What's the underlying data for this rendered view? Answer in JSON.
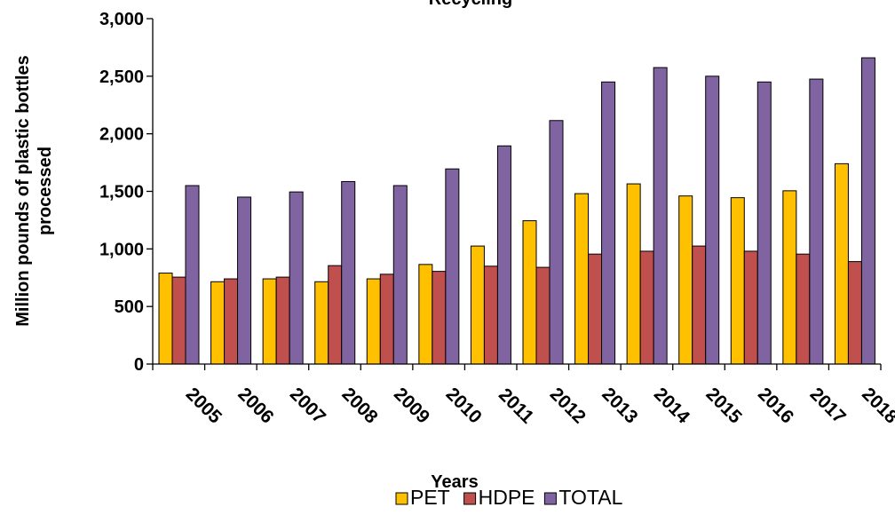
{
  "chart_data": {
    "type": "bar",
    "title": "Recycling",
    "xlabel": "Years",
    "ylabel_line1": "Million pounds of plastic bottles",
    "ylabel_line2": "processed",
    "categories": [
      "2005",
      "2006",
      "2007",
      "2008",
      "2009",
      "2010",
      "2011",
      "2012",
      "2013",
      "2014",
      "2015",
      "2016",
      "2017",
      "2018"
    ],
    "ylim": [
      0,
      3000
    ],
    "yticks": [
      0,
      500,
      1000,
      1500,
      2000,
      2500,
      3000
    ],
    "ytick_labels": [
      "0",
      "500",
      "1,000",
      "1,500",
      "2,000",
      "2,500",
      "3,000"
    ],
    "grid": false,
    "legend_position": "bottom",
    "series": [
      {
        "name": "PET",
        "color": "#FFC000",
        "values": [
          790,
          715,
          740,
          715,
          740,
          865,
          1025,
          1245,
          1480,
          1565,
          1460,
          1445,
          1505,
          1740
        ]
      },
      {
        "name": "HDPE",
        "color": "#C0504D",
        "values": [
          755,
          740,
          755,
          855,
          780,
          805,
          850,
          840,
          955,
          980,
          1025,
          980,
          955,
          890
        ]
      },
      {
        "name": "TOTAL",
        "color": "#8064A2",
        "values": [
          1550,
          1450,
          1495,
          1585,
          1550,
          1695,
          1895,
          2115,
          2450,
          2575,
          2500,
          2450,
          2475,
          2660
        ]
      }
    ]
  }
}
